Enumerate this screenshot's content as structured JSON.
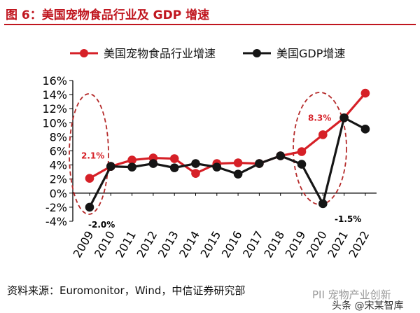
{
  "header": {
    "title": "图 6：美国宠物食品行业及 GDP 增速"
  },
  "source": "资料来源：Euromonitor，Wind，中信证券研究部",
  "watermark": {
    "line1": "PII 宠物产业创新",
    "line2": "头条 @宋某智库"
  },
  "chart_data": {
    "type": "line",
    "categories": [
      "2009",
      "2010",
      "2011",
      "2012",
      "2013",
      "2014",
      "2015",
      "2016",
      "2017",
      "2018",
      "2019",
      "2020",
      "2021",
      "2022"
    ],
    "series": [
      {
        "name": "美国宠物食品行业增速",
        "color": "#d62027",
        "values": [
          2.1,
          3.8,
          4.7,
          5.0,
          4.9,
          2.8,
          4.2,
          4.3,
          4.2,
          5.3,
          5.9,
          8.3,
          10.7,
          14.2
        ]
      },
      {
        "name": "美国GDP增速",
        "color": "#151515",
        "values": [
          -2.0,
          3.8,
          3.7,
          4.2,
          3.6,
          4.2,
          3.7,
          2.7,
          4.2,
          5.3,
          4.1,
          -1.5,
          10.7,
          9.1
        ]
      }
    ],
    "ylim": [
      -4,
      16
    ],
    "yticks": [
      -4,
      -2,
      0,
      2,
      4,
      6,
      8,
      10,
      12,
      14,
      16
    ],
    "ytick_labels": [
      "-4%",
      "-2%",
      "0%",
      "2%",
      "4%",
      "6%",
      "8%",
      "10%",
      "12%",
      "14%",
      "16%"
    ],
    "annotations": [
      "2.1%",
      "-2.0%",
      "8.3%",
      "-1.5%"
    ],
    "legend_position": "top",
    "grid": false
  }
}
